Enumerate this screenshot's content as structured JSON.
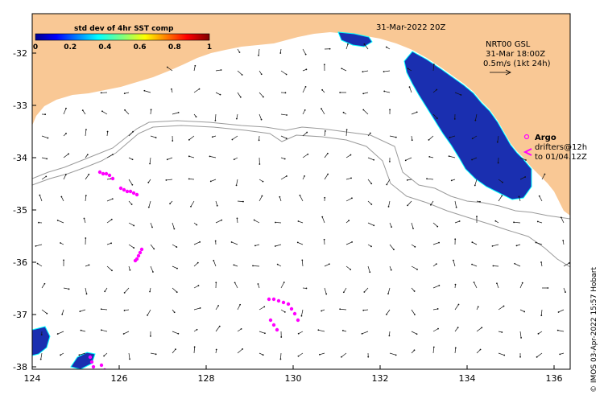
{
  "map": {
    "timestamp": "31-Mar-2022 20Z",
    "x_ticks": [
      "124",
      "126",
      "128",
      "130",
      "132",
      "134",
      "136"
    ],
    "y_ticks": [
      "-32",
      "-33",
      "-34",
      "-35",
      "-36",
      "-37",
      "-38"
    ],
    "colors": {
      "land": "#f9c895",
      "isobath": "#9a9a9a",
      "argo": "#ff00ff",
      "high_sst": "#1a2fb0",
      "low_sst": "#00ffff"
    }
  },
  "colorbar": {
    "title": "std dev of 4hr SST comp",
    "ticks": [
      "0",
      "0.2",
      "0.4",
      "0.6",
      "0.8",
      "1"
    ]
  },
  "current_legend": {
    "line1": "NRT00 GSL",
    "line2": "31-Mar 18:00Z",
    "line3": "0.5m/s (1kt 24h)"
  },
  "argo_legend": {
    "title": "Argo",
    "line1": "drifters@12h",
    "line2": "to 01/04.12Z"
  },
  "credit": "© IMOS 03-Apr-2022 15:57 Hobart"
}
